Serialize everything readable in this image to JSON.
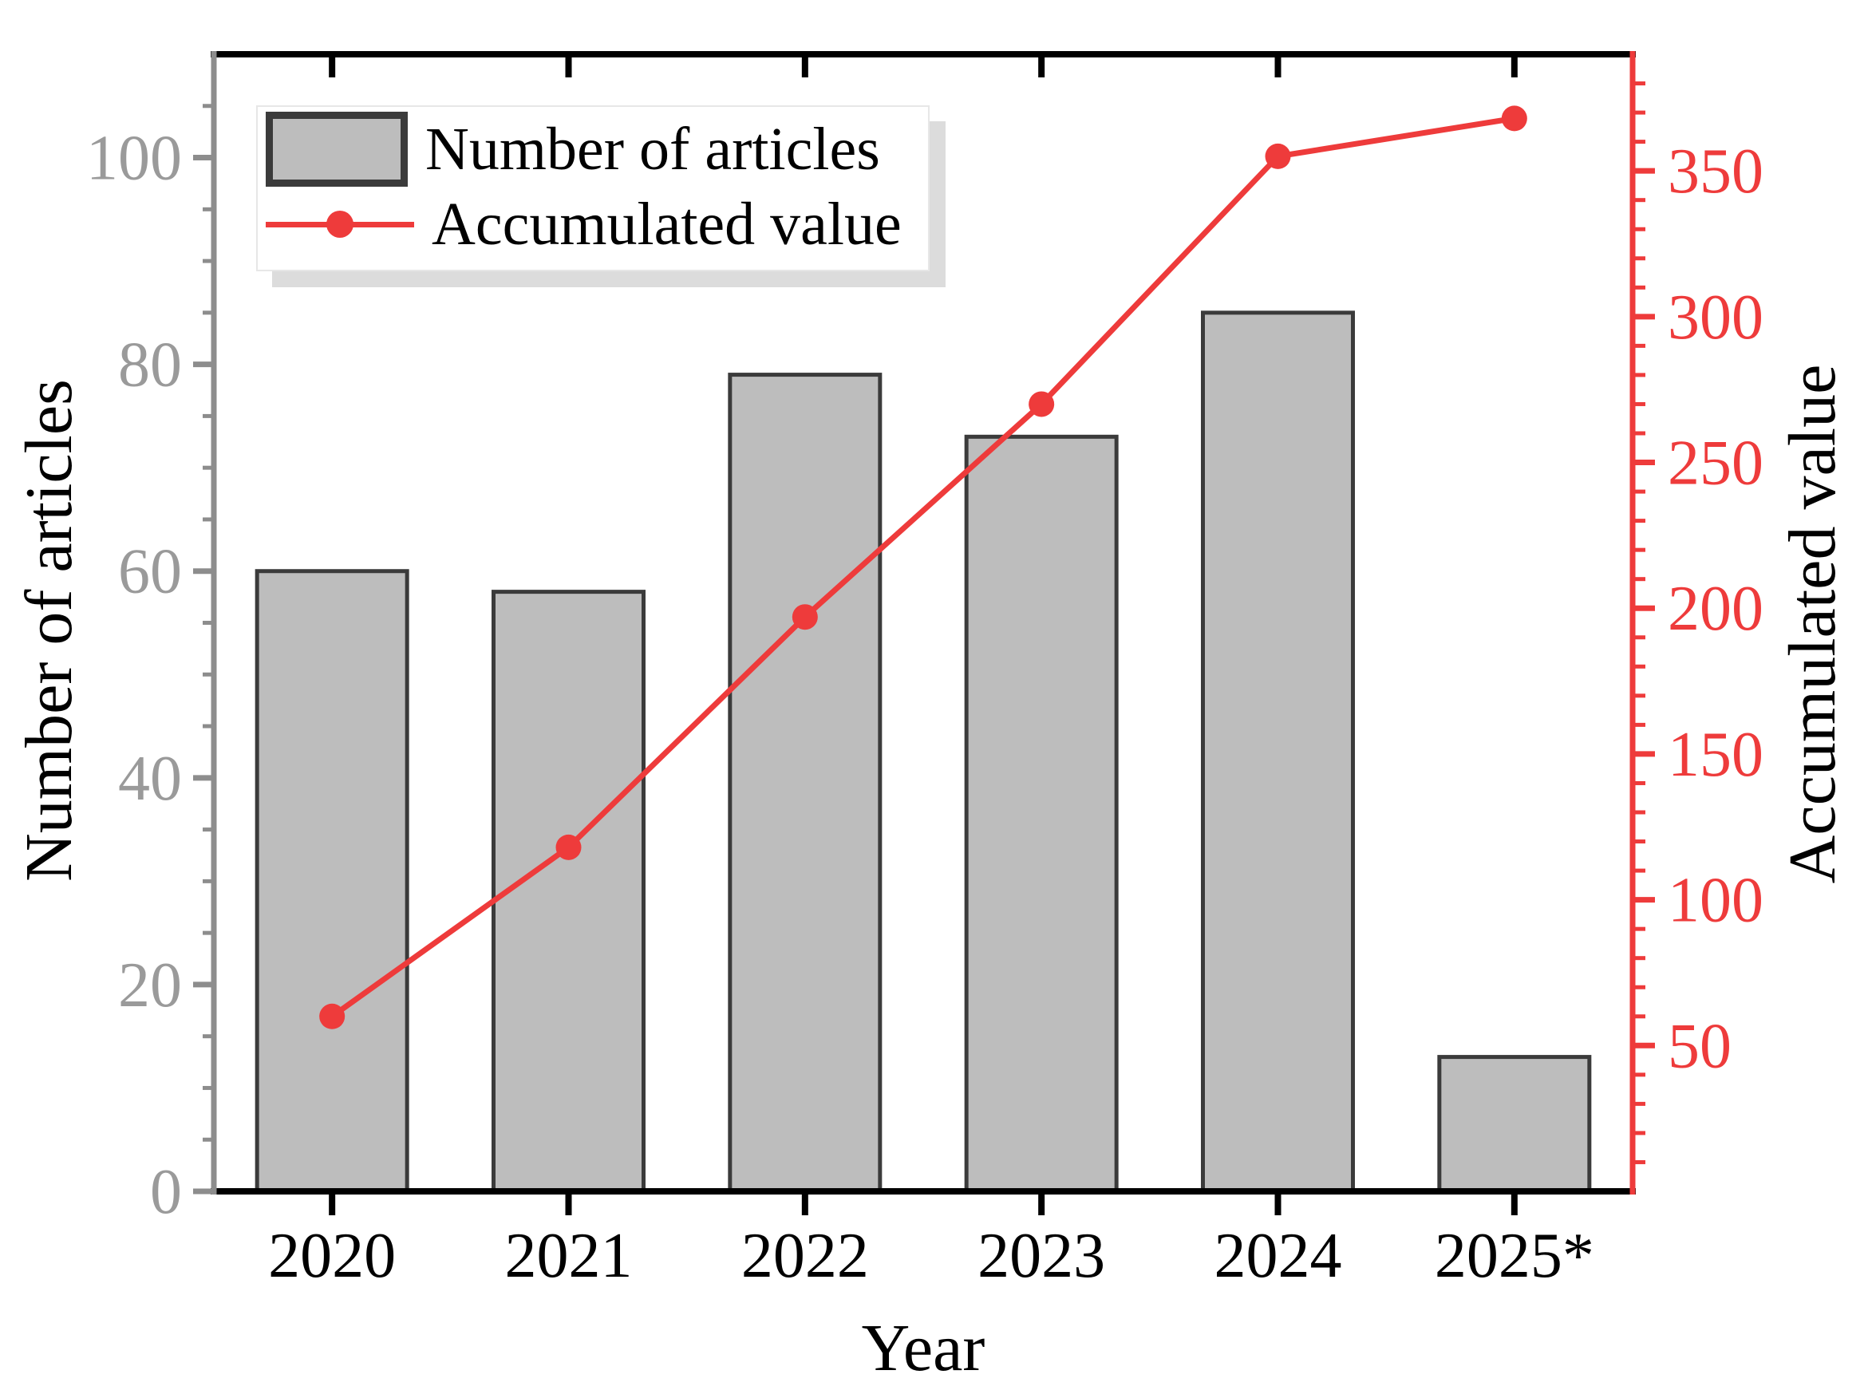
{
  "chart_data": {
    "type": "bar",
    "subtype": "bar-line-combo",
    "title": "",
    "categories": [
      "2020",
      "2021",
      "2022",
      "2023",
      "2024",
      "2025*"
    ],
    "series": [
      {
        "name": "Number of articles",
        "type": "bar",
        "axis": "left",
        "values": [
          60,
          58,
          79,
          73,
          85,
          13
        ]
      },
      {
        "name": "Accumulated value",
        "type": "line",
        "axis": "right",
        "values": [
          60,
          118,
          197,
          270,
          355,
          368
        ]
      }
    ],
    "x_axis": {
      "title": "Year"
    },
    "left_axis": {
      "title": "Number of articles",
      "tick_labels": [
        0,
        20,
        40,
        60,
        80,
        100
      ],
      "range": [
        0,
        110
      ],
      "minor_step": 5,
      "major_step": 20
    },
    "right_axis": {
      "title": "Accumulated value",
      "tick_labels": [
        50,
        100,
        150,
        200,
        250,
        300,
        350
      ],
      "range": [
        0,
        390
      ],
      "minor_step": 10,
      "major_step": 50
    },
    "legend": {
      "position": "top-left",
      "items": [
        {
          "label": "Number of articles",
          "marker": "gray-bar-swatch"
        },
        {
          "label": "Accumulated value",
          "marker": "red-line-dot"
        }
      ]
    },
    "grid": "off",
    "colors": {
      "bar_fill": "#bdbdbd",
      "bar_border": "#3b3b3b",
      "line": "#ee3b3b",
      "left_axis": "#8d8d8d",
      "left_tick_label": "#9a9a9a",
      "right_axis": "#ee3b3b",
      "black_axis": "#000000",
      "legend_shadow": "#dcdcdc"
    }
  }
}
